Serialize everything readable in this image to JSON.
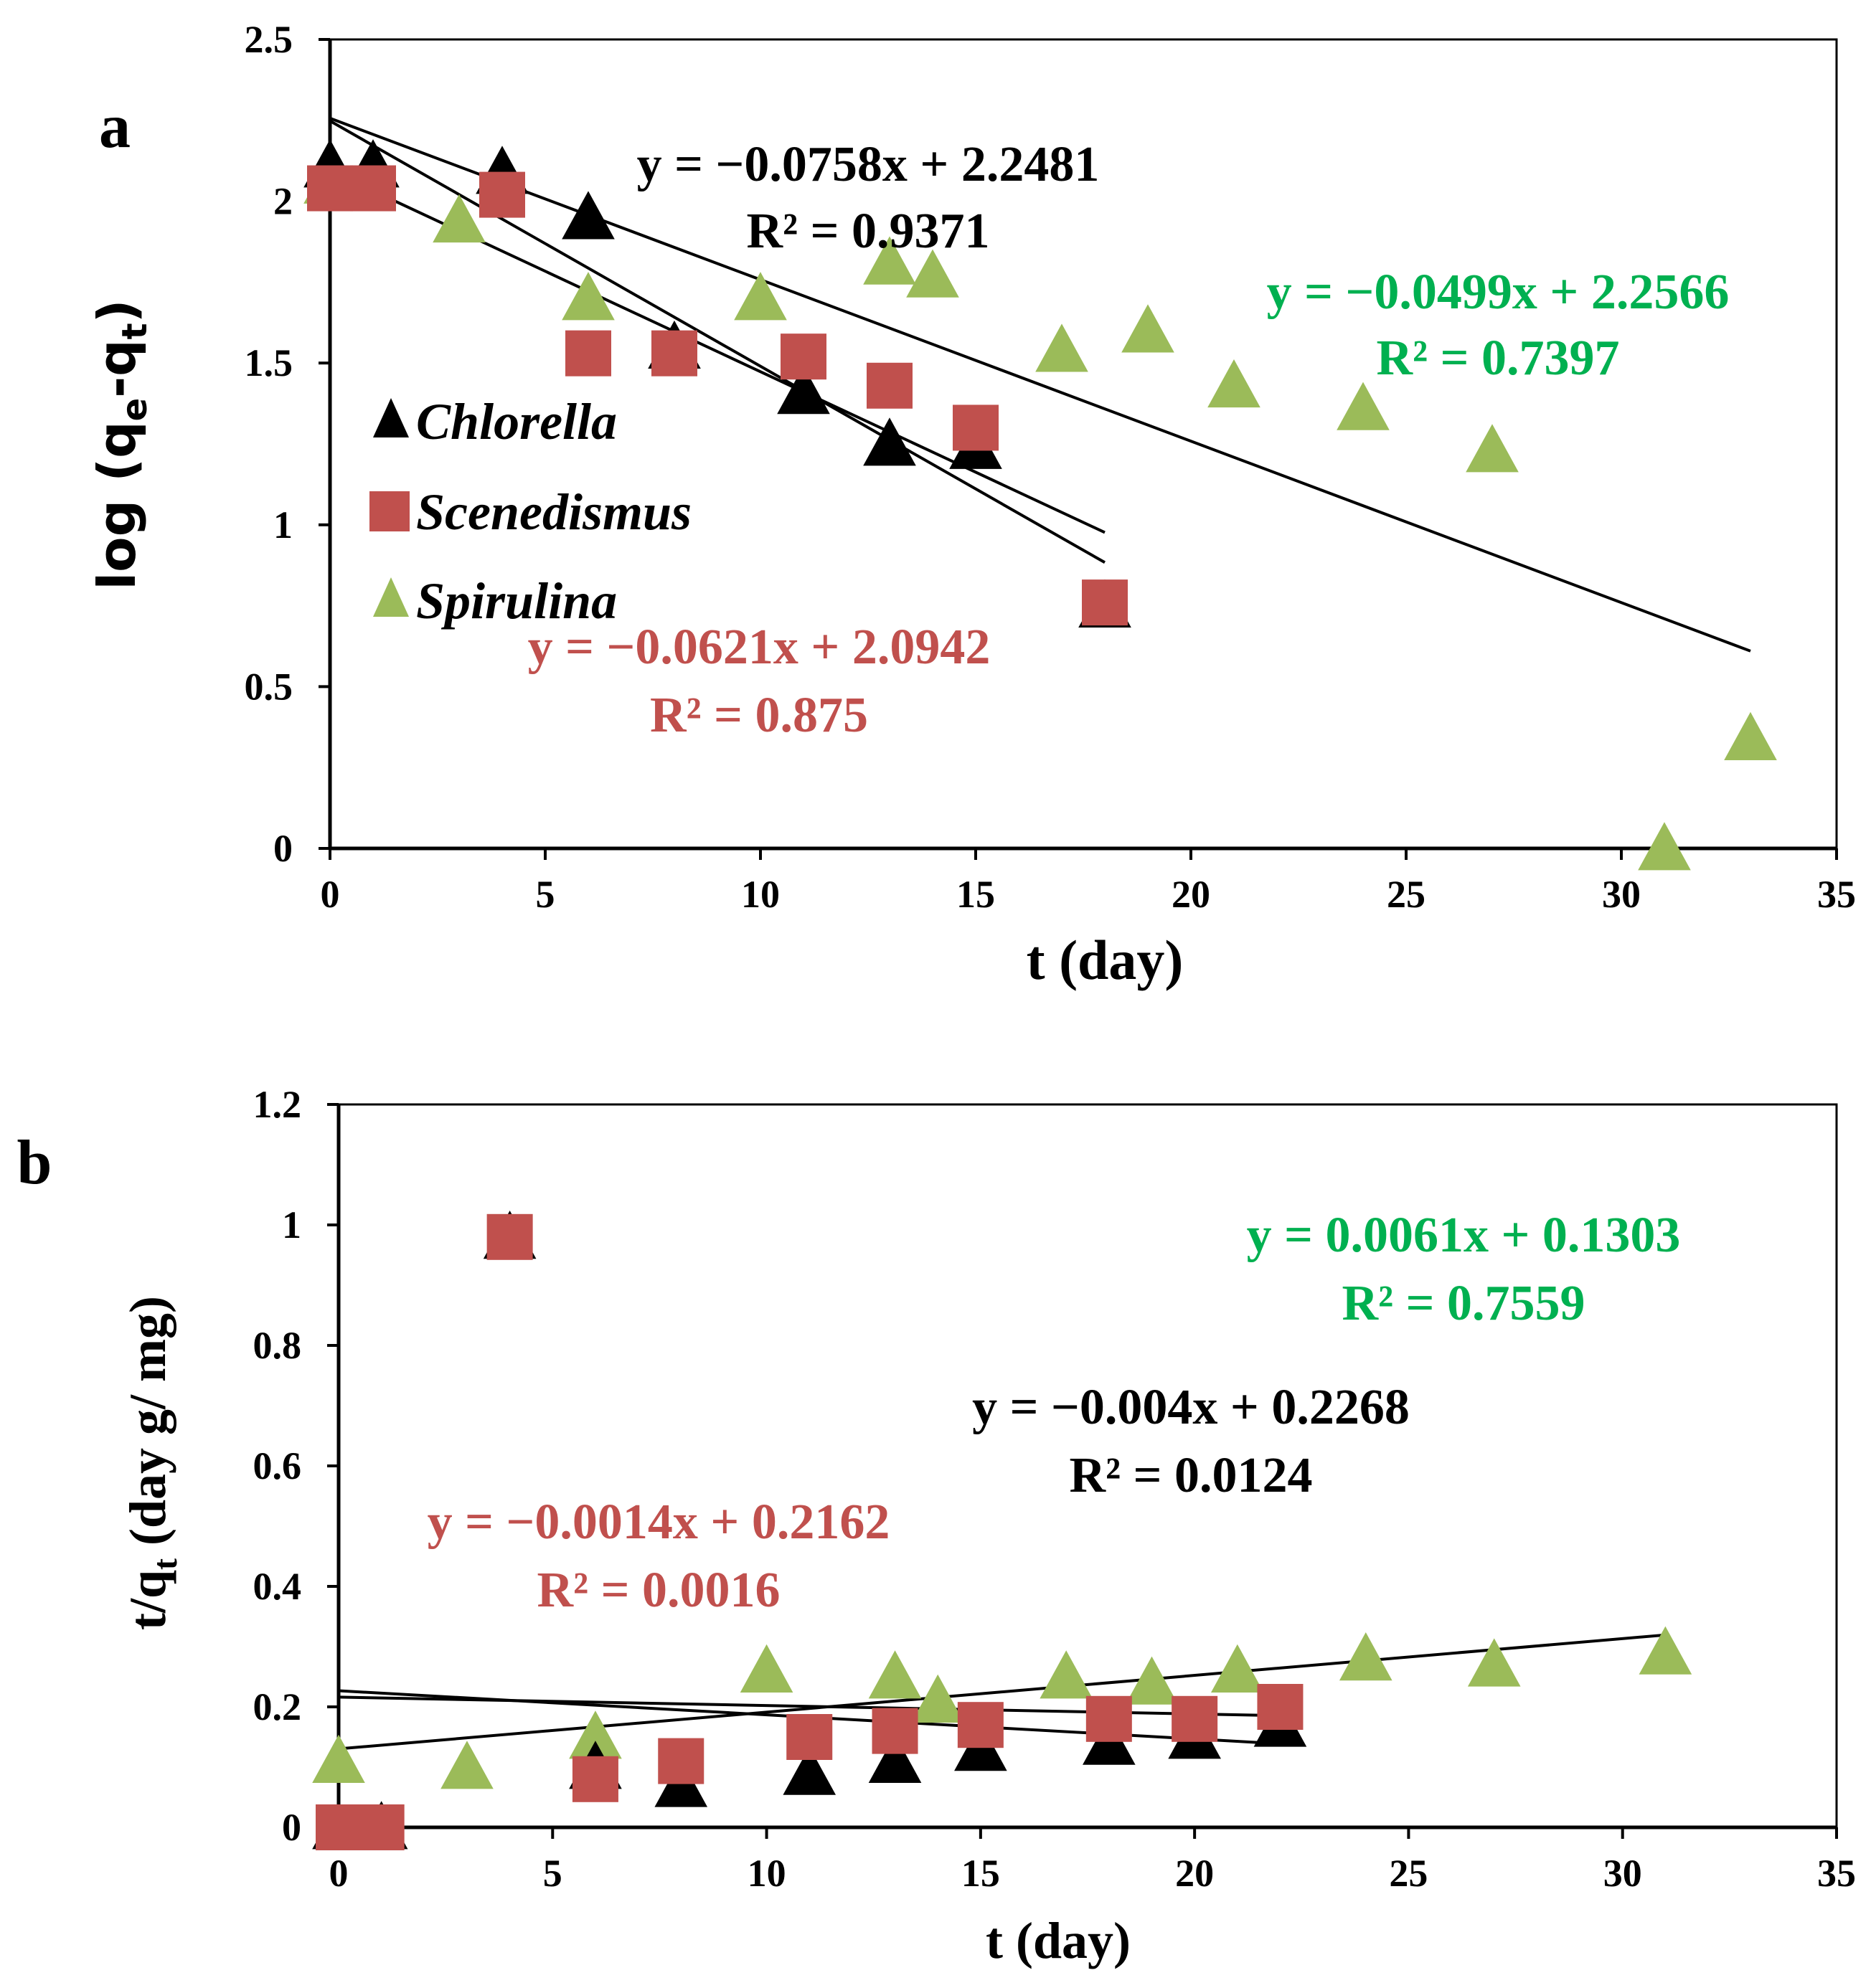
{
  "colors": {
    "chlorella": "#000000",
    "scenedismus": "#C0504D",
    "spirulina": "#9BBB59",
    "eq_chlorella": "#000000",
    "eq_scenedismus": "#C0504D",
    "eq_spirulina": "#00B050",
    "axis": "#000000",
    "trendline": "#000000"
  },
  "chart_data": [
    {
      "type": "scatter",
      "panel_label": "a",
      "xlabel": "t (day)",
      "ylabel": "log (qe-qt)",
      "ylabel_main": "log (q",
      "ylabel_sub1": "e",
      "ylabel_mid": "-q",
      "ylabel_sub2": "t",
      "ylabel_end": ")",
      "xlim": [
        0,
        35
      ],
      "ylim": [
        0,
        2.5
      ],
      "xticks": [
        0,
        5,
        10,
        15,
        20,
        25,
        30,
        35
      ],
      "yticks": [
        0,
        0.5,
        1,
        1.5,
        2,
        2.5
      ],
      "xtick_labels": [
        "0",
        "5",
        "10",
        "15",
        "20",
        "25",
        "30",
        "35"
      ],
      "ytick_labels": [
        "0",
        "0.5",
        "1",
        "1.5",
        "2",
        "2.5"
      ],
      "legend": [
        "Chlorella",
        "Scenedismus",
        "Spirulina"
      ],
      "series": [
        {
          "name": "Chlorella",
          "marker": "triangle",
          "x": [
            0,
            1,
            4,
            6,
            8,
            11,
            13,
            15,
            18
          ],
          "y": [
            2.11,
            2.11,
            2.09,
            1.95,
            1.55,
            1.41,
            1.25,
            1.24,
            0.75
          ],
          "trend": {
            "slope": -0.0758,
            "intercept": 2.2481,
            "x_range": [
              0,
              18
            ]
          }
        },
        {
          "name": "Scenedismus",
          "marker": "square",
          "x": [
            0,
            1,
            4,
            6,
            8,
            11,
            13,
            15,
            18
          ],
          "y": [
            2.04,
            2.04,
            2.02,
            1.53,
            1.53,
            1.52,
            1.43,
            1.3,
            0.76
          ],
          "trend": {
            "slope": -0.0621,
            "intercept": 2.0942,
            "x_range": [
              0,
              18
            ]
          }
        },
        {
          "name": "Spirulina",
          "marker": "triangle",
          "x": [
            0,
            3,
            6,
            10,
            13,
            14,
            17,
            19,
            21,
            24,
            27,
            31,
            33
          ],
          "y": [
            2.06,
            1.94,
            1.7,
            1.7,
            1.81,
            1.77,
            1.54,
            1.6,
            1.43,
            1.36,
            1.23,
            0.0,
            0.34
          ],
          "trend": {
            "slope": -0.0499,
            "intercept": 2.2566,
            "x_range": [
              0,
              33
            ]
          }
        }
      ],
      "annotations": [
        {
          "name": "Chlorella",
          "equation": "y = −0.0758x + 2.2481",
          "r2": "R² = 0.9371"
        },
        {
          "name": "Spirulina",
          "equation": "y = −0.0499x + 2.2566",
          "r2": "R² = 0.7397"
        },
        {
          "name": "Scenedismus",
          "equation": "y = −0.0621x + 2.0942",
          "r2": "R² = 0.875"
        }
      ]
    },
    {
      "type": "scatter",
      "panel_label": "b",
      "xlabel": "t (day)",
      "ylabel": "t/qt (day g/ mg)",
      "ylabel_main": "t/q",
      "ylabel_sub": "t",
      "ylabel_end": " (day g/ mg)",
      "xlim": [
        0,
        35
      ],
      "ylim": [
        0,
        1.2
      ],
      "xticks": [
        0,
        5,
        10,
        15,
        20,
        25,
        30,
        35
      ],
      "yticks": [
        0,
        0.2,
        0.4,
        0.6,
        0.8,
        1,
        1.2
      ],
      "xtick_labels": [
        "0",
        "5",
        "10",
        "15",
        "20",
        "25",
        "30",
        "35"
      ],
      "ytick_labels": [
        "0",
        "0.2",
        "0.4",
        "0.6",
        "0.8",
        "1",
        "1.2"
      ],
      "series": [
        {
          "name": "Chlorella",
          "marker": "triangle",
          "x": [
            0,
            1,
            4,
            6,
            8,
            11,
            13,
            15,
            18,
            20,
            22
          ],
          "y": [
            0.0,
            0.0,
            0.98,
            0.1,
            0.07,
            0.09,
            0.11,
            0.13,
            0.14,
            0.15,
            0.17
          ],
          "trend": {
            "slope": -0.004,
            "intercept": 0.2268,
            "x_range": [
              0,
              22
            ]
          }
        },
        {
          "name": "Scenedismus",
          "marker": "square",
          "x": [
            0,
            1,
            4,
            6,
            8,
            11,
            13,
            15,
            18,
            20,
            22
          ],
          "y": [
            0.0,
            0.0,
            0.98,
            0.08,
            0.11,
            0.15,
            0.16,
            0.17,
            0.18,
            0.18,
            0.2
          ],
          "trend": {
            "slope": -0.0014,
            "intercept": 0.2162,
            "x_range": [
              0,
              22
            ]
          }
        },
        {
          "name": "Spirulina",
          "marker": "triangle",
          "x": [
            0,
            3,
            6,
            10,
            13,
            14,
            17,
            19,
            21,
            24,
            27,
            31
          ],
          "y": [
            0.11,
            0.1,
            0.15,
            0.26,
            0.25,
            0.21,
            0.25,
            0.24,
            0.26,
            0.28,
            0.27,
            0.29
          ],
          "trend": {
            "slope": 0.0061,
            "intercept": 0.1303,
            "x_range": [
              0,
              31
            ]
          }
        }
      ],
      "annotations": [
        {
          "name": "Spirulina",
          "equation": "y = 0.0061x + 0.1303",
          "r2": "R² = 0.7559"
        },
        {
          "name": "Chlorella",
          "equation": "y = −0.004x + 0.2268",
          "r2": "R² = 0.0124"
        },
        {
          "name": "Scenedismus",
          "equation": "y = −0.0014x + 0.2162",
          "r2": "R² = 0.0016"
        }
      ]
    }
  ]
}
